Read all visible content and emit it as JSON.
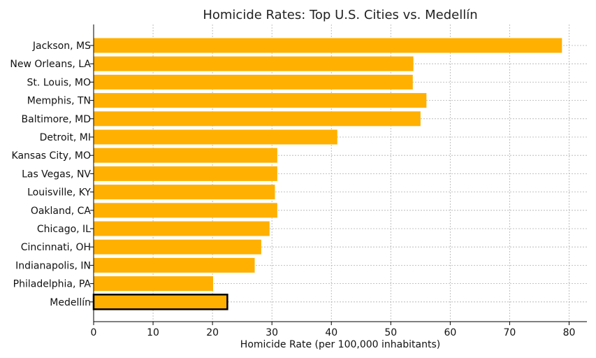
{
  "chart_data": {
    "type": "bar",
    "orientation": "horizontal",
    "title": "Homicide Rates: Top U.S. Cities vs. Medellín",
    "xlabel": "Homicide Rate (per 100,000 inhabitants)",
    "ylabel": "",
    "xlim": [
      0,
      83
    ],
    "xticks": [
      0,
      10,
      20,
      30,
      40,
      50,
      60,
      70,
      80
    ],
    "grid": true,
    "categories": [
      "Jackson, MS",
      "New Orleans, LA",
      "St. Louis, MO",
      "Memphis, TN",
      "Baltimore, MD",
      "Detroit, MI",
      "Kansas City, MO",
      "Las Vegas, NV",
      "Louisville, KY",
      "Oakland, CA",
      "Chicago, IL",
      "Cincinnati, OH",
      "Indianapolis, IN",
      "Philadelphia, PA",
      "Medellín"
    ],
    "values": [
      78.8,
      53.8,
      53.7,
      56.0,
      55.0,
      41.0,
      30.9,
      30.9,
      30.5,
      30.9,
      29.6,
      28.2,
      27.1,
      20.1,
      22.5
    ],
    "bar_color": "#FFB000",
    "highlight": {
      "category": "Medellín",
      "edge_color": "#000000"
    }
  }
}
